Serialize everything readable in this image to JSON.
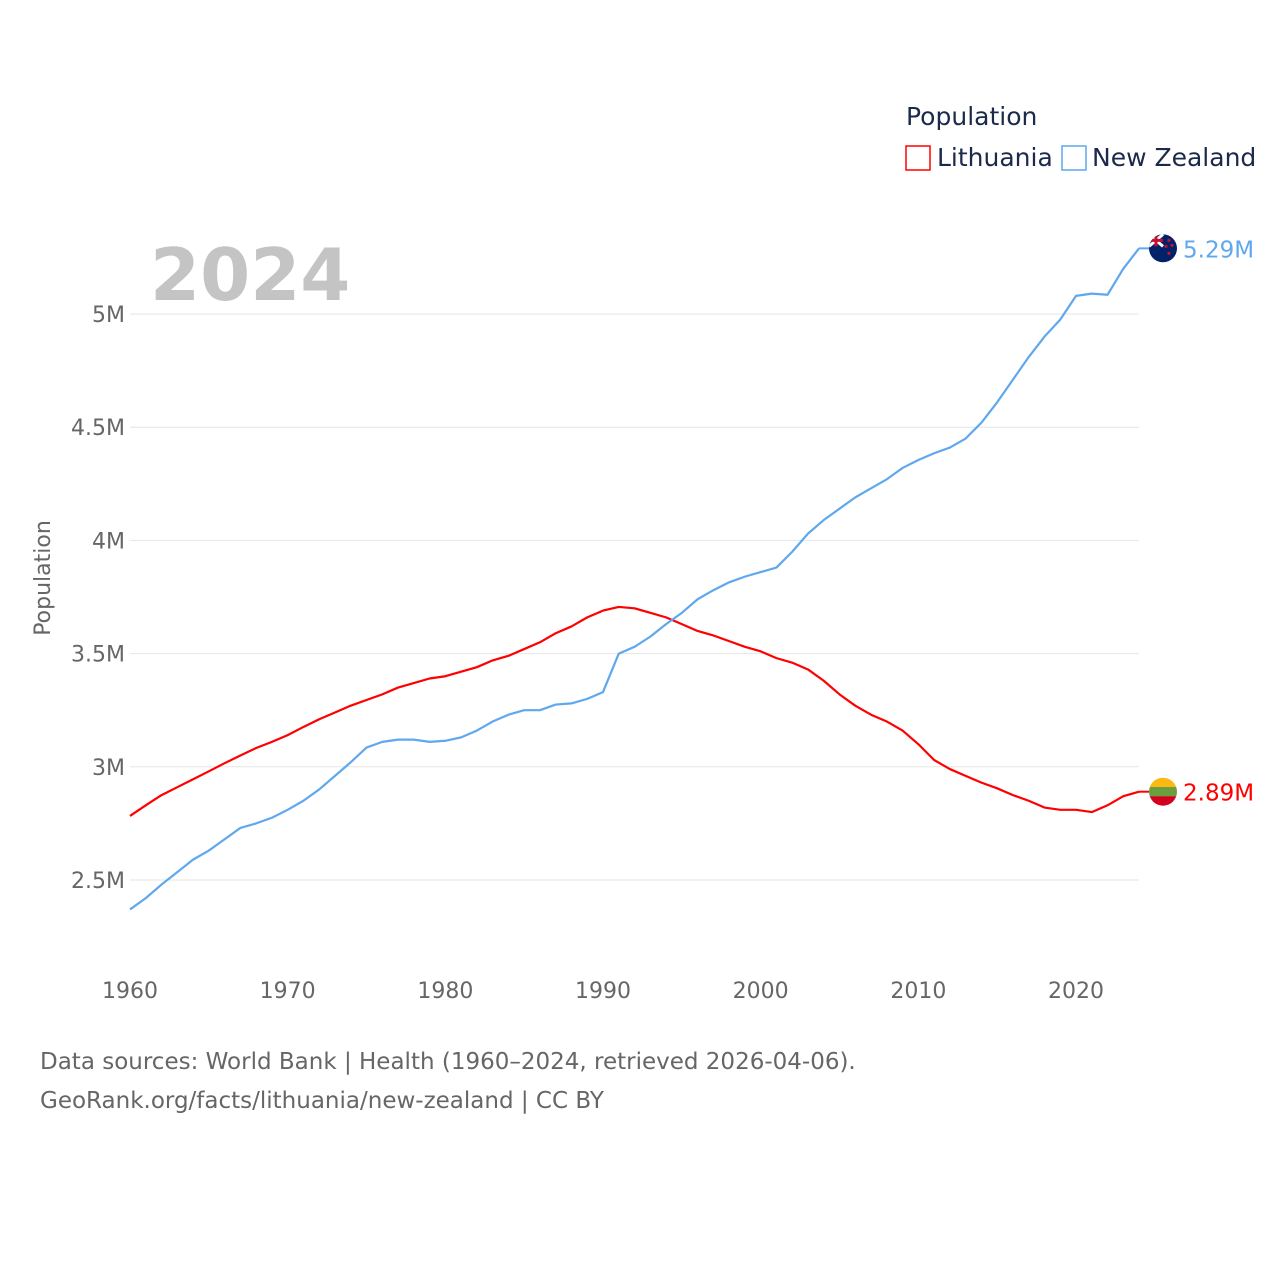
{
  "chart_data": {
    "type": "line",
    "title": "",
    "year_label": "2024",
    "ylabel": "Population",
    "xlabel": "",
    "xlim": [
      1960,
      2024
    ],
    "ylim": [
      2.2,
      5.3
    ],
    "grid": true,
    "x_ticks": [
      1960,
      1970,
      1980,
      1990,
      2000,
      2010,
      2020
    ],
    "x_tick_labels": [
      "1960",
      "1970",
      "1980",
      "1990",
      "2000",
      "2010",
      "2020"
    ],
    "y_ticks": [
      2.5,
      3,
      3.5,
      4,
      4.5,
      5
    ],
    "y_tick_labels": [
      "2.5M",
      "3M",
      "3.5M",
      "4M",
      "4.5M",
      "5M"
    ],
    "legend": {
      "title": "Population",
      "placement": "top-right"
    },
    "x": [
      1960,
      1961,
      1962,
      1963,
      1964,
      1965,
      1966,
      1967,
      1968,
      1969,
      1970,
      1971,
      1972,
      1973,
      1974,
      1975,
      1976,
      1977,
      1978,
      1979,
      1980,
      1981,
      1982,
      1983,
      1984,
      1985,
      1986,
      1987,
      1988,
      1989,
      1990,
      1991,
      1992,
      1993,
      1994,
      1995,
      1996,
      1997,
      1998,
      1999,
      2000,
      2001,
      2002,
      2003,
      2004,
      2005,
      2006,
      2007,
      2008,
      2009,
      2010,
      2011,
      2012,
      2013,
      2014,
      2015,
      2016,
      2017,
      2018,
      2019,
      2020,
      2021,
      2022,
      2023,
      2024
    ],
    "series": [
      {
        "name": "Lithuania",
        "color": "#ff0000",
        "end_label": "2.89M",
        "flag_colors": [
          "#fdb913",
          "#6a9e3f",
          "#d5001f"
        ],
        "values": [
          2.783,
          2.83,
          2.875,
          2.91,
          2.945,
          2.98,
          3.016,
          3.05,
          3.083,
          3.11,
          3.14,
          3.176,
          3.21,
          3.24,
          3.27,
          3.295,
          3.32,
          3.35,
          3.37,
          3.39,
          3.4,
          3.42,
          3.44,
          3.47,
          3.49,
          3.52,
          3.55,
          3.59,
          3.62,
          3.66,
          3.69,
          3.706,
          3.7,
          3.68,
          3.66,
          3.63,
          3.6,
          3.58,
          3.555,
          3.53,
          3.51,
          3.48,
          3.46,
          3.43,
          3.38,
          3.32,
          3.27,
          3.23,
          3.2,
          3.16,
          3.1,
          3.03,
          2.99,
          2.96,
          2.93,
          2.905,
          2.875,
          2.85,
          2.82,
          2.81,
          2.81,
          2.8,
          2.83,
          2.87,
          2.89
        ]
      },
      {
        "name": "New Zealand",
        "color": "#5fa8ee",
        "end_label": "5.29M",
        "flag_colors": [
          "#012169",
          "#c8102e",
          "#ffffff"
        ],
        "values": [
          2.37,
          2.42,
          2.48,
          2.535,
          2.59,
          2.63,
          2.68,
          2.73,
          2.75,
          2.775,
          2.81,
          2.85,
          2.9,
          2.96,
          3.02,
          3.085,
          3.11,
          3.12,
          3.12,
          3.11,
          3.115,
          3.13,
          3.16,
          3.2,
          3.23,
          3.25,
          3.25,
          3.275,
          3.28,
          3.3,
          3.33,
          3.5,
          3.53,
          3.575,
          3.63,
          3.68,
          3.74,
          3.78,
          3.815,
          3.84,
          3.86,
          3.88,
          3.95,
          4.03,
          4.09,
          4.14,
          4.19,
          4.23,
          4.27,
          4.32,
          4.355,
          4.385,
          4.41,
          4.45,
          4.52,
          4.61,
          4.71,
          4.81,
          4.9,
          4.975,
          5.08,
          5.09,
          5.085,
          5.2,
          5.29
        ]
      }
    ]
  },
  "footer": {
    "line1": "Data sources: World Bank | Health (1960–2024, retrieved 2026-04-06).",
    "line2": "GeoRank.org/facts/lithuania/new-zealand | CC BY"
  }
}
